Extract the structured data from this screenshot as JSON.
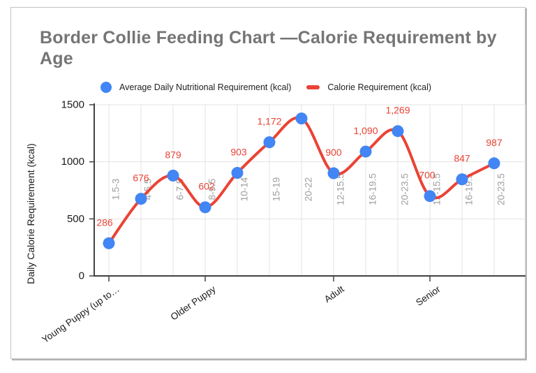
{
  "title": "Border Collie Feeding Chart —Calorie Requirement by Age",
  "legend": {
    "position": "top",
    "items": [
      {
        "label": "Average Daily Nutritional Requirement (kcal)",
        "marker": "circle",
        "color": "#4285f4"
      },
      {
        "label": "Calorie Requirement (kcal)",
        "marker": "dash",
        "color": "#ea4335"
      }
    ]
  },
  "chart_data": {
    "type": "line",
    "smooth": true,
    "title": "Border Collie Feeding Chart —Calorie Requirement by Age",
    "xlabel": "",
    "ylabel": "Daily Calorie Requirement (kcal)",
    "ylim": [
      0,
      1500
    ],
    "yticks": [
      0,
      500,
      1000,
      1500
    ],
    "grid": true,
    "legend_position": "top",
    "categories": [
      "1.5-3",
      "4-5.5",
      "6-7.5",
      "8-9.5",
      "10-14",
      "15-19",
      "20-22",
      "12-15.5",
      "16-19.5",
      "20-23.5",
      "12-15.5",
      "16-19.5",
      "20-23.5"
    ],
    "stage_labels": [
      {
        "col": 0,
        "label": "Young Puppy (up to…"
      },
      {
        "col": 3,
        "label": "Older Puppy"
      },
      {
        "col": 7,
        "label": "Adult"
      },
      {
        "col": 10,
        "label": "Senior"
      }
    ],
    "series": [
      {
        "name": "Average Daily Nutritional Requirement (kcal)",
        "style": "points",
        "color": "#4285f4",
        "values": [
          286,
          676,
          879,
          602,
          903,
          1172,
          1380,
          900,
          1090,
          1269,
          700,
          847,
          987
        ]
      },
      {
        "name": "Calorie Requirement (kcal)",
        "style": "smooth-line",
        "color": "#ea4335",
        "values": [
          286,
          676,
          879,
          602,
          903,
          1172,
          1380,
          900,
          1090,
          1269,
          700,
          847,
          987
        ]
      }
    ],
    "data_labels": [
      "286",
      "676",
      "879",
      "602",
      "903",
      "1,172",
      null,
      "900",
      "1,090",
      "1,269",
      "700",
      "847",
      "987"
    ]
  },
  "colors": {
    "title": "#757575",
    "line": "#ea4335",
    "point": "#4285f4",
    "data_label": "#ea4335",
    "annotation": "#9e9e9e",
    "axis_text": "#1a1a1a",
    "gridline": "#e3e3e3",
    "axis_line": "#424242",
    "frame_border": "#c2c2c2",
    "background": "#ffffff"
  }
}
